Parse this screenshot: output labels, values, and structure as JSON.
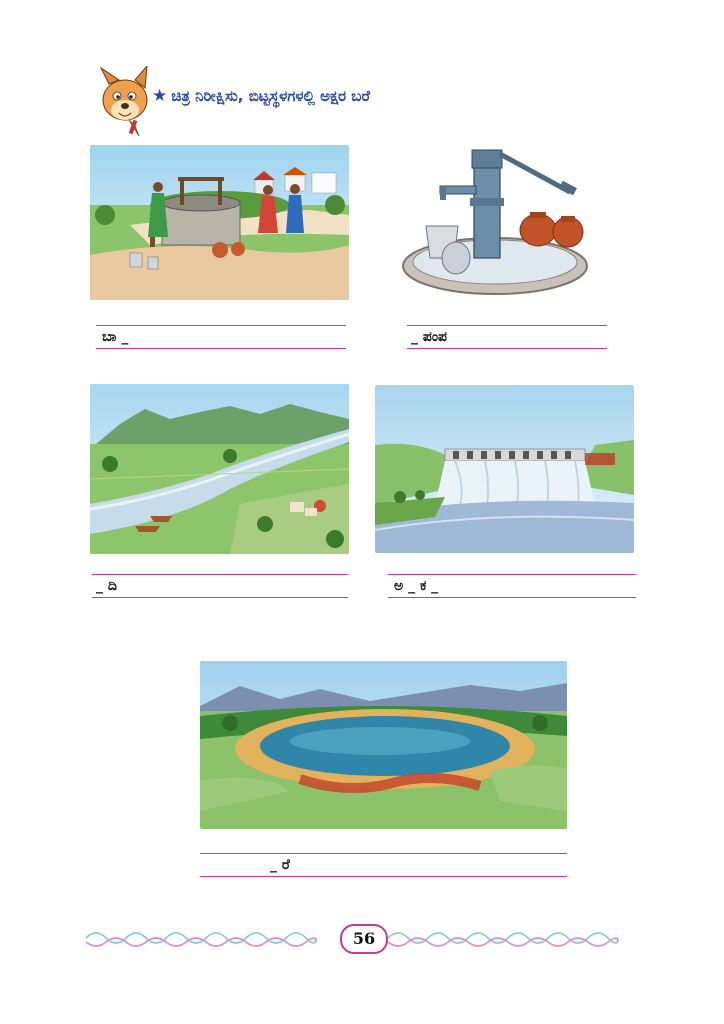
{
  "instruction": {
    "icon": "star-icon",
    "text": "ಚಿತ್ರ ನಿರೀಕ್ಷಿಸು, ಬಿಟ್ಟಸ್ಥಳಗಳಲ್ಲಿ ಅಕ್ಷರ ಬರೆ"
  },
  "exercises": [
    {
      "picture": "village-well",
      "answer": "ಬಾ _"
    },
    {
      "picture": "hand-pump",
      "answer": "_ ಪಂಪ"
    },
    {
      "picture": "river",
      "answer": "_ ದಿ"
    },
    {
      "picture": "dam",
      "answer": "ಅ _   ಕ _"
    },
    {
      "picture": "lake",
      "answer": "_ ರೆ"
    }
  ],
  "footer": {
    "page_number": "56"
  },
  "colors": {
    "heading": "#2b4aa3",
    "rule_lines": "#d0378f",
    "footer_swirl_blue": "#7ec9e8",
    "footer_swirl_pink": "#e58bc1"
  }
}
